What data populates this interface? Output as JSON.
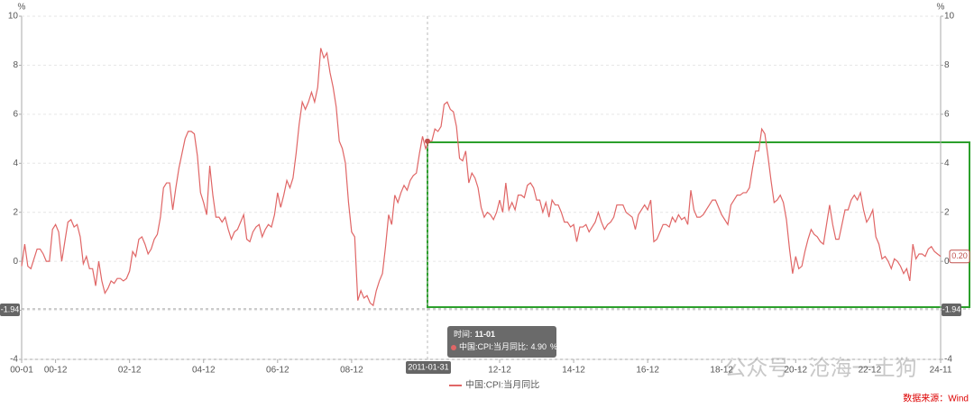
{
  "chart_data": {
    "type": "line",
    "y_unit": "%",
    "categories": [
      "00-01",
      null,
      null,
      null,
      null,
      null,
      null,
      null,
      null,
      null,
      null,
      "00-12",
      null,
      null,
      null,
      null,
      null,
      null,
      null,
      null,
      null,
      null,
      null,
      null,
      null,
      null,
      null,
      null,
      null,
      null,
      null,
      null,
      null,
      null,
      null,
      "02-12",
      null,
      null,
      null,
      null,
      null,
      null,
      null,
      null,
      null,
      null,
      null,
      null,
      null,
      null,
      null,
      null,
      null,
      null,
      null,
      null,
      null,
      null,
      null,
      "04-12",
      null,
      null,
      null,
      null,
      null,
      null,
      null,
      null,
      null,
      null,
      null,
      null,
      null,
      null,
      null,
      null,
      null,
      null,
      null,
      null,
      null,
      null,
      null,
      "06-12",
      null,
      null,
      null,
      null,
      null,
      null,
      null,
      null,
      null,
      null,
      null,
      null,
      null,
      null,
      null,
      null,
      null,
      null,
      null,
      null,
      null,
      null,
      null,
      "08-12",
      null,
      null,
      null,
      null,
      null,
      null,
      null,
      null,
      null,
      null,
      null,
      null,
      null,
      null,
      null,
      null,
      null,
      null,
      null,
      null,
      null,
      null,
      null,
      null,
      null,
      null,
      null,
      null,
      null,
      null,
      null,
      null,
      null,
      null,
      null,
      null,
      null,
      null,
      null,
      null,
      null,
      null,
      null,
      null,
      null,
      null,
      null,
      "12-12",
      null,
      null,
      null,
      null,
      null,
      null,
      null,
      null,
      null,
      null,
      null,
      null,
      null,
      null,
      null,
      null,
      null,
      null,
      null,
      null,
      null,
      null,
      null,
      "14-12",
      null,
      null,
      null,
      null,
      null,
      null,
      null,
      null,
      null,
      null,
      null,
      null,
      null,
      null,
      null,
      null,
      null,
      null,
      null,
      null,
      null,
      null,
      null,
      "16-12",
      null,
      null,
      null,
      null,
      null,
      null,
      null,
      null,
      null,
      null,
      null,
      null,
      null,
      null,
      null,
      null,
      null,
      null,
      null,
      null,
      null,
      null,
      null,
      "18-12",
      null,
      null,
      null,
      null,
      null,
      null,
      null,
      null,
      null,
      null,
      null,
      null,
      null,
      null,
      null,
      null,
      null,
      null,
      null,
      null,
      null,
      null,
      null,
      "20-12",
      null,
      null,
      null,
      null,
      null,
      null,
      null,
      null,
      null,
      null,
      null,
      null,
      null,
      null,
      null,
      null,
      null,
      null,
      null,
      null,
      null,
      null,
      null,
      "22-12",
      null,
      null,
      null,
      null,
      null,
      null,
      null,
      null,
      null,
      null,
      null,
      null,
      null,
      null,
      null,
      null,
      null,
      null,
      null,
      null,
      null,
      null,
      "24-11"
    ],
    "series": [
      {
        "name": "中国:CPI:当月同比",
        "color": "#e06666",
        "values": [
          -0.2,
          0.7,
          -0.2,
          -0.3,
          0.1,
          0.5,
          0.5,
          0.3,
          0.0,
          0.0,
          1.3,
          1.5,
          1.2,
          0.0,
          0.8,
          1.6,
          1.7,
          1.4,
          1.5,
          1.0,
          -0.1,
          0.2,
          -0.3,
          -0.3,
          -1.0,
          0.0,
          -0.8,
          -1.3,
          -1.1,
          -0.8,
          -0.9,
          -0.7,
          -0.7,
          -0.8,
          -0.7,
          -0.4,
          0.4,
          0.2,
          0.9,
          1.0,
          0.7,
          0.3,
          0.5,
          0.9,
          1.1,
          1.8,
          3.0,
          3.2,
          3.2,
          2.1,
          3.0,
          3.8,
          4.4,
          5.0,
          5.3,
          5.3,
          5.2,
          4.3,
          2.8,
          2.4,
          1.9,
          3.9,
          2.7,
          1.8,
          1.8,
          1.6,
          1.8,
          1.3,
          0.9,
          1.2,
          1.3,
          1.6,
          1.9,
          0.9,
          0.8,
          1.2,
          1.4,
          1.5,
          1.0,
          1.3,
          1.5,
          1.4,
          1.9,
          2.8,
          2.2,
          2.7,
          3.3,
          3.0,
          3.4,
          4.4,
          5.6,
          6.5,
          6.2,
          6.5,
          6.9,
          6.5,
          7.1,
          8.7,
          8.3,
          8.5,
          7.7,
          7.1,
          6.3,
          4.9,
          4.6,
          4.0,
          2.4,
          1.2,
          1.0,
          -1.6,
          -1.2,
          -1.5,
          -1.4,
          -1.7,
          -1.8,
          -1.2,
          -0.8,
          -0.5,
          0.6,
          1.9,
          1.5,
          2.7,
          2.4,
          2.8,
          3.1,
          2.9,
          3.3,
          3.5,
          3.6,
          4.4,
          5.1,
          4.6,
          4.9,
          4.9,
          5.4,
          5.3,
          5.5,
          6.4,
          6.5,
          6.2,
          6.1,
          5.5,
          4.2,
          4.1,
          4.5,
          3.2,
          3.6,
          3.4,
          3.0,
          2.2,
          1.8,
          2.0,
          1.9,
          1.7,
          2.0,
          2.5,
          2.0,
          3.2,
          2.1,
          2.4,
          2.1,
          2.7,
          2.7,
          2.6,
          3.1,
          3.2,
          3.0,
          2.5,
          2.5,
          2.0,
          2.4,
          1.8,
          2.5,
          2.3,
          2.3,
          2.0,
          1.6,
          1.6,
          1.4,
          1.5,
          0.8,
          1.4,
          1.4,
          1.5,
          1.2,
          1.4,
          1.6,
          2.0,
          1.6,
          1.3,
          1.5,
          1.6,
          1.8,
          2.3,
          2.3,
          2.3,
          2.0,
          1.9,
          1.8,
          1.3,
          1.9,
          2.1,
          2.3,
          2.1,
          2.5,
          0.8,
          0.9,
          1.2,
          1.5,
          1.5,
          1.4,
          1.8,
          1.6,
          1.9,
          1.7,
          1.8,
          1.5,
          2.9,
          2.1,
          1.8,
          1.8,
          1.9,
          2.1,
          2.3,
          2.5,
          2.5,
          2.2,
          1.9,
          1.7,
          1.5,
          2.3,
          2.5,
          2.7,
          2.7,
          2.8,
          2.8,
          3.0,
          3.8,
          4.5,
          4.5,
          5.4,
          5.2,
          4.3,
          3.3,
          2.4,
          2.5,
          2.7,
          2.4,
          1.7,
          0.5,
          -0.5,
          0.2,
          -0.3,
          -0.2,
          0.4,
          0.9,
          1.3,
          1.1,
          1.0,
          0.8,
          0.7,
          1.5,
          2.3,
          1.5,
          0.9,
          0.9,
          1.5,
          2.1,
          2.1,
          2.5,
          2.7,
          2.5,
          2.8,
          2.1,
          1.6,
          1.8,
          2.1,
          1.0,
          0.7,
          0.1,
          0.2,
          0.0,
          -0.3,
          0.1,
          0.0,
          -0.2,
          -0.5,
          -0.3,
          -0.8,
          0.7,
          0.1,
          0.3,
          0.3,
          0.2,
          0.5,
          0.6,
          0.4,
          0.3,
          0.2
        ]
      }
    ],
    "ylim": [
      -4,
      10
    ],
    "yticks": [
      -4,
      -2,
      0,
      2,
      4,
      6,
      8,
      10
    ],
    "y2lim": [
      -4,
      10
    ],
    "y2ticks": [
      -4,
      -2,
      0,
      2,
      4,
      6,
      8,
      10
    ],
    "grid": true,
    "crosshair_x_label": "2011-01-31",
    "crosshair_y_label": "-1.94",
    "last_value_label": "0.20",
    "tooltip": {
      "title_label": "时间:",
      "title": "11-01",
      "series_label": "中国:CPI:当月同比:",
      "value": "4.90",
      "unit": "%"
    },
    "watermark": "公众号 · 沧海一土狗",
    "source": "数据来源：Wind"
  }
}
